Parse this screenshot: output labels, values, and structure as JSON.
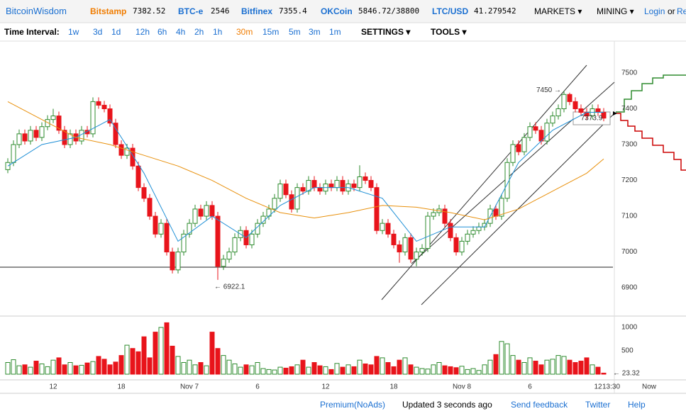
{
  "header": {
    "brand": "BitcoinWisdom",
    "tickers": [
      {
        "name": "Bitstamp",
        "price": "7382.52"
      },
      {
        "name": "BTC-e",
        "price": "2546"
      },
      {
        "name": "Bitfinex",
        "price": "7355.4"
      },
      {
        "name": "OKCoin",
        "price": "5846.72/38800"
      },
      {
        "name": "LTC/USD",
        "price": "41.279542"
      }
    ],
    "menus": [
      "MARKETS",
      "MINING"
    ],
    "login": "Login",
    "or": "or",
    "register": "Re"
  },
  "toolbar": {
    "label": "Time Interval:",
    "intervals": [
      "1w",
      "3d",
      "1d",
      "12h",
      "6h",
      "4h",
      "2h",
      "1h",
      "30m",
      "15m",
      "5m",
      "3m",
      "1m"
    ],
    "active": "30m",
    "settings": "SETTINGS",
    "tools": "TOOLS"
  },
  "chart_data": {
    "type": "candlestick",
    "candles": [
      [
        7230,
        7262,
        7220,
        7250
      ],
      [
        7250,
        7312,
        7240,
        7300
      ],
      [
        7300,
        7342,
        7290,
        7330
      ],
      [
        7330,
        7342,
        7300,
        7310
      ],
      [
        7310,
        7352,
        7300,
        7340
      ],
      [
        7340,
        7352,
        7310,
        7320
      ],
      [
        7320,
        7362,
        7310,
        7350
      ],
      [
        7350,
        7382,
        7340,
        7370
      ],
      [
        7370,
        7400,
        7360,
        7380
      ],
      [
        7380,
        7392,
        7330,
        7340
      ],
      [
        7340,
        7352,
        7290,
        7300
      ],
      [
        7300,
        7342,
        7290,
        7330
      ],
      [
        7330,
        7342,
        7300,
        7310
      ],
      [
        7310,
        7352,
        7300,
        7340
      ],
      [
        7340,
        7352,
        7320,
        7330
      ],
      [
        7330,
        7432,
        7320,
        7420
      ],
      [
        7420,
        7432,
        7400,
        7410
      ],
      [
        7410,
        7422,
        7390,
        7400
      ],
      [
        7400,
        7412,
        7350,
        7360
      ],
      [
        7360,
        7372,
        7290,
        7300
      ],
      [
        7300,
        7312,
        7260,
        7270
      ],
      [
        7270,
        7302,
        7260,
        7290
      ],
      [
        7290,
        7302,
        7230,
        7240
      ],
      [
        7240,
        7252,
        7170,
        7180
      ],
      [
        7180,
        7192,
        7140,
        7150
      ],
      [
        7150,
        7162,
        7090,
        7100
      ],
      [
        7100,
        7112,
        7040,
        7050
      ],
      [
        7050,
        7092,
        7040,
        7080
      ],
      [
        7080,
        7092,
        6990,
        7000
      ],
      [
        7000,
        7012,
        6940,
        6950
      ],
      [
        6950,
        7012,
        6940,
        7000
      ],
      [
        7000,
        7062,
        6990,
        7050
      ],
      [
        7050,
        7092,
        7040,
        7080
      ],
      [
        7080,
        7132,
        7070,
        7120
      ],
      [
        7120,
        7132,
        7090,
        7100
      ],
      [
        7100,
        7142,
        7090,
        7130
      ],
      [
        7130,
        7142,
        7090,
        7100
      ],
      [
        7100,
        7112,
        6922.1,
        6960
      ],
      [
        6960,
        6992,
        6950,
        6980
      ],
      [
        6980,
        7012,
        6970,
        7000
      ],
      [
        7000,
        7052,
        6990,
        7040
      ],
      [
        7040,
        7072,
        7030,
        7060
      ],
      [
        7060,
        7072,
        7010,
        7020
      ],
      [
        7020,
        7062,
        7010,
        7050
      ],
      [
        7050,
        7092,
        7040,
        7080
      ],
      [
        7080,
        7112,
        7070,
        7100
      ],
      [
        7100,
        7132,
        7090,
        7120
      ],
      [
        7120,
        7162,
        7110,
        7150
      ],
      [
        7150,
        7202,
        7140,
        7190
      ],
      [
        7190,
        7202,
        7150,
        7160
      ],
      [
        7160,
        7172,
        7110,
        7120
      ],
      [
        7120,
        7192,
        7110,
        7180
      ],
      [
        7180,
        7192,
        7160,
        7170
      ],
      [
        7170,
        7212,
        7160,
        7200
      ],
      [
        7200,
        7212,
        7170,
        7180
      ],
      [
        7180,
        7192,
        7160,
        7170
      ],
      [
        7170,
        7202,
        7160,
        7190
      ],
      [
        7190,
        7202,
        7170,
        7180
      ],
      [
        7180,
        7212,
        7170,
        7200
      ],
      [
        7200,
        7212,
        7160,
        7170
      ],
      [
        7170,
        7202,
        7160,
        7190
      ],
      [
        7190,
        7202,
        7170,
        7180
      ],
      [
        7180,
        7242,
        7170,
        7210
      ],
      [
        7210,
        7222,
        7190,
        7200
      ],
      [
        7200,
        7212,
        7170,
        7180
      ],
      [
        7180,
        7192,
        7050,
        7060
      ],
      [
        7060,
        7092,
        7050,
        7080
      ],
      [
        7080,
        7092,
        7040,
        7050
      ],
      [
        7050,
        7062,
        7010,
        7020
      ],
      [
        7020,
        7032,
        6970,
        7000
      ],
      [
        7000,
        7052,
        6990,
        7040
      ],
      [
        7040,
        7052,
        6970,
        6980
      ],
      [
        6980,
        7012,
        6960,
        7000
      ],
      [
        7000,
        7022,
        6990,
        7010
      ],
      [
        7010,
        7112,
        7000,
        7100
      ],
      [
        7100,
        7122,
        7090,
        7110
      ],
      [
        7110,
        7132,
        7100,
        7120
      ],
      [
        7120,
        7132,
        7070,
        7080
      ],
      [
        7080,
        7092,
        7030,
        7040
      ],
      [
        7040,
        7052,
        6990,
        7000
      ],
      [
        7000,
        7042,
        6990,
        7030
      ],
      [
        7030,
        7062,
        7020,
        7050
      ],
      [
        7050,
        7072,
        7040,
        7060
      ],
      [
        7060,
        7082,
        7050,
        7070
      ],
      [
        7070,
        7092,
        7060,
        7080
      ],
      [
        7080,
        7132,
        7070,
        7120
      ],
      [
        7120,
        7132,
        7090,
        7100
      ],
      [
        7100,
        7162,
        7090,
        7150
      ],
      [
        7150,
        7262,
        7140,
        7250
      ],
      [
        7250,
        7312,
        7240,
        7300
      ],
      [
        7300,
        7312,
        7270,
        7280
      ],
      [
        7280,
        7332,
        7270,
        7320
      ],
      [
        7320,
        7362,
        7310,
        7350
      ],
      [
        7350,
        7362,
        7330,
        7340
      ],
      [
        7340,
        7352,
        7300,
        7310
      ],
      [
        7310,
        7372,
        7300,
        7360
      ],
      [
        7360,
        7392,
        7350,
        7380
      ],
      [
        7380,
        7412,
        7370,
        7400
      ],
      [
        7400,
        7450,
        7390,
        7440
      ],
      [
        7440,
        7445,
        7410,
        7420
      ],
      [
        7420,
        7432,
        7390,
        7400
      ],
      [
        7400,
        7412,
        7380,
        7390
      ],
      [
        7390,
        7402,
        7370,
        7380
      ],
      [
        7380,
        7412,
        7370,
        7400
      ],
      [
        7400,
        7412,
        7380,
        7390
      ],
      [
        7390,
        7402,
        7365,
        7373.9
      ]
    ],
    "volumes": [
      250,
      310,
      180,
      200,
      150,
      280,
      220,
      160,
      300,
      350,
      200,
      250,
      180,
      190,
      240,
      270,
      380,
      320,
      200,
      260,
      400,
      620,
      550,
      480,
      800,
      350,
      900,
      1000,
      1100,
      600,
      380,
      250,
      300,
      200,
      250,
      180,
      900,
      550,
      400,
      300,
      220,
      150,
      200,
      180,
      250,
      120,
      100,
      90,
      150,
      130,
      160,
      200,
      300,
      150,
      250,
      180,
      160,
      100,
      230,
      150,
      200,
      160,
      300,
      220,
      200,
      380,
      350,
      250,
      160,
      300,
      350,
      200,
      150,
      120,
      110,
      200,
      250,
      180,
      160,
      140,
      170,
      100,
      120,
      80,
      200,
      300,
      420,
      700,
      650,
      400,
      300,
      250,
      350,
      280,
      200,
      300,
      320,
      400,
      380,
      300,
      250,
      280,
      350,
      200,
      150,
      23.32
    ],
    "up_color": "#2e8b2e",
    "down_color": "#e8141b",
    "lines": [
      {
        "color": "#1e8fd6",
        "x": [
          0,
          6,
          12,
          18,
          24,
          30,
          36,
          42,
          48,
          54,
          60,
          66,
          72,
          78,
          84,
          90,
          96,
          102,
          105
        ],
        "values": [
          7240,
          7300,
          7320,
          7370,
          7220,
          7030,
          7100,
          7040,
          7130,
          7180,
          7180,
          7150,
          7030,
          7070,
          7070,
          7250,
          7340,
          7390,
          7390
        ]
      },
      {
        "color": "#e8900c",
        "x": [
          0,
          6,
          12,
          18,
          24,
          30,
          36,
          42,
          48,
          54,
          60,
          66,
          72,
          78,
          84,
          90,
          96,
          102,
          105
        ],
        "values": [
          7420,
          7370,
          7320,
          7300,
          7270,
          7240,
          7200,
          7150,
          7110,
          7095,
          7110,
          7130,
          7125,
          7110,
          7090,
          7120,
          7170,
          7220,
          7260
        ]
      }
    ],
    "ylim": [
      6823,
      7589
    ],
    "yticks": [
      7500,
      7400,
      7300,
      7200,
      7100,
      7000,
      6900
    ],
    "vlim": [
      0,
      1100
    ],
    "vticks": [
      1000,
      500
    ],
    "time_ticks": [
      {
        "value": 8,
        "label": "12"
      },
      {
        "value": 20,
        "label": "18"
      },
      {
        "value": 32,
        "label": "Nov 7"
      },
      {
        "value": 44,
        "label": "6"
      },
      {
        "value": 56,
        "label": "12"
      },
      {
        "value": 68,
        "label": "18"
      },
      {
        "value": 80,
        "label": "Nov 8"
      },
      {
        "value": 92,
        "label": "6"
      },
      {
        "value": 104,
        "label": "12"
      }
    ],
    "current_time": "13:30",
    "now": "Now",
    "annotations": {
      "high": "7450 →",
      "low": "← 6922.1",
      "last": "7373.9",
      "last_volume": "← 23.32"
    }
  },
  "footer": [
    "Premium(NoAds)",
    "Updated 3 seconds ago",
    "Send feedback",
    "Twitter",
    "Help"
  ]
}
